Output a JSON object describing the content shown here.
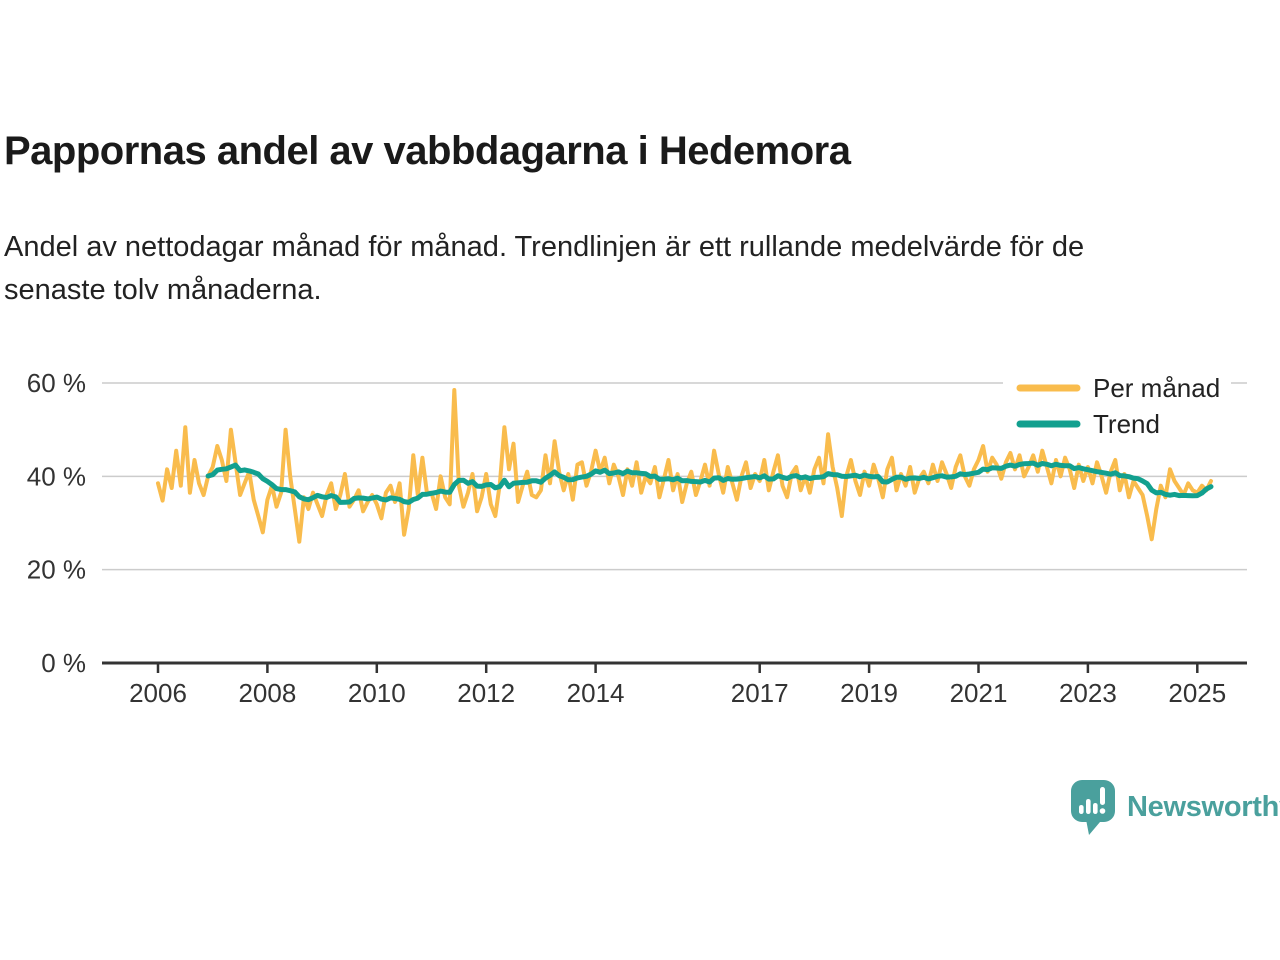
{
  "header": {
    "title": "Pappornas andel av vabbdagarna i Hedemora",
    "subtitle_lines": [
      "Andel av nettodagar månad för månad. Trendlinjen är ett rullande medelvärde för de",
      "senaste tolv månaderna."
    ]
  },
  "branding": {
    "name": "Newsworthy",
    "logo_icon": "newsworthy-speech-bubble-bar-chart-icon"
  },
  "colors": {
    "per_manad": "#F9BC4D",
    "trend": "#12A08F",
    "logo": "#4AA09D",
    "grid": "#CCCCCC",
    "axis": "#333333",
    "text": "#1A1A1A"
  },
  "chart_data": {
    "type": "line",
    "title": "Pappornas andel av vabbdagarna i Hedemora",
    "subtitle": "Andel av nettodagar månad för månad. Trendlinjen är ett rullande medelvärde för de senaste tolv månaderna.",
    "frequency": "monthly",
    "x_start": "2006-01",
    "x_end": "2025-04",
    "xlabel": "",
    "ylabel": "",
    "ylim": [
      0,
      62
    ],
    "grid": "horizontal",
    "legend_position": "top-right",
    "legend": [
      {
        "label": "Per månad",
        "color_key": "per_manad"
      },
      {
        "label": "Trend",
        "color_key": "trend"
      }
    ],
    "xticks": [
      2006,
      2008,
      2010,
      2012,
      2014,
      2017,
      2019,
      2021,
      2023,
      2025
    ],
    "ytick_values": [
      0,
      20,
      40,
      60
    ],
    "ytick_labels": [
      "0 %",
      "20 %",
      "40 %",
      "60 %"
    ],
    "series": [
      {
        "name": "Per månad",
        "unit": "%",
        "values": [
          38.5,
          34.8,
          41.5,
          37.5,
          45.5,
          38,
          50.5,
          36.5,
          43.5,
          38.5,
          36,
          40,
          42,
          46.5,
          43.5,
          39,
          50,
          43,
          36,
          38.5,
          41,
          35,
          31.5,
          28,
          35,
          38,
          33.5,
          36.5,
          50,
          40,
          33,
          26,
          35.5,
          33,
          36.5,
          34,
          31.5,
          36,
          38.5,
          33,
          36,
          40.5,
          33.5,
          35,
          37,
          32.5,
          34.5,
          36,
          34,
          31,
          36.5,
          38,
          34.5,
          38.5,
          27.5,
          33,
          44.5,
          36,
          44,
          36.5,
          36.5,
          33,
          40,
          35.5,
          34,
          58.5,
          38,
          33.5,
          36.5,
          40.5,
          32.5,
          35.5,
          40.5,
          34,
          31.5,
          38.5,
          50.5,
          41.5,
          47,
          34.5,
          38,
          41,
          36,
          35.5,
          37,
          44.5,
          38.5,
          47.5,
          41,
          37,
          40.5,
          35,
          42.5,
          43,
          38,
          41,
          45.5,
          41,
          44,
          38.5,
          42.5,
          40,
          36,
          41.5,
          38,
          43,
          36.5,
          40,
          38.5,
          42,
          35.5,
          39.5,
          43.5,
          37,
          40.5,
          34.5,
          38.5,
          41,
          36,
          39,
          42.5,
          38,
          45.5,
          40.5,
          36.5,
          42,
          38.5,
          35,
          40,
          43,
          37.5,
          40.5,
          39,
          43.5,
          37,
          41,
          44.5,
          38,
          35.5,
          40.5,
          42,
          37,
          40,
          36.5,
          41.5,
          44,
          38.5,
          49,
          42,
          37.5,
          31.5,
          40,
          43.5,
          39,
          36,
          41,
          38,
          42.5,
          39.5,
          35.5,
          41.5,
          44,
          37,
          40.5,
          38,
          42,
          36.5,
          39.5,
          41,
          38.5,
          42.5,
          39,
          43,
          40.5,
          37.5,
          42,
          44.5,
          40,
          38,
          41.5,
          43.5,
          46.5,
          41,
          44,
          42.5,
          39.5,
          43,
          45,
          41.5,
          44.5,
          40,
          42,
          44.5,
          41,
          45.5,
          42,
          38.5,
          43.5,
          40,
          44,
          41.5,
          37.5,
          42.5,
          39,
          42,
          38.5,
          43,
          40,
          36.5,
          41,
          43.5,
          37,
          40.5,
          35.5,
          39,
          37.5,
          36,
          31.5,
          26.5,
          33,
          38,
          35.5,
          41.5,
          39,
          37.5,
          36,
          38.5,
          37,
          36.5,
          38,
          37,
          39
        ]
      },
      {
        "name": "Trend",
        "unit": "%",
        "derived_from": "Per månad",
        "derivation": "rolling mean of trailing 12 months"
      }
    ]
  }
}
